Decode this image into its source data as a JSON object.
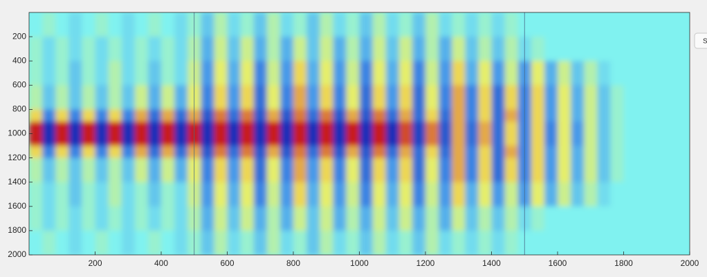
{
  "chart_data": {
    "type": "heatmap",
    "xlim": [
      0,
      2000
    ],
    "ylim": [
      0,
      2000
    ],
    "y_reversed": true,
    "xticks": [
      200,
      400,
      600,
      800,
      1000,
      1200,
      1400,
      1600,
      1800,
      2000
    ],
    "yticks": [
      200,
      400,
      600,
      800,
      1000,
      1200,
      1400,
      1600,
      1800,
      2000
    ],
    "clim": [
      -9,
      9
    ],
    "colormap": [
      "#1a2fb8",
      "#3f8fe8",
      "#80f2f0",
      "#f2ee5a",
      "#c81e1e"
    ],
    "vlines": [
      500,
      1500
    ],
    "vline_color": "#4a6a8a",
    "z": [
      [
        0,
        1,
        0,
        -1,
        0,
        1,
        0,
        -1,
        0,
        1,
        0,
        -1,
        1,
        -2,
        2,
        -1,
        1,
        -2,
        2,
        -1,
        1,
        -2,
        2,
        -1,
        1,
        -2,
        2,
        -1,
        1,
        -2,
        2,
        -1,
        1,
        -1,
        1,
        -1,
        1,
        0,
        0,
        0,
        0,
        0,
        0,
        0,
        0,
        0,
        0,
        0,
        0,
        0
      ],
      [
        0,
        1,
        0,
        -1,
        0,
        1,
        0,
        -1,
        0,
        1,
        0,
        -1,
        1,
        -2,
        2,
        -1,
        1,
        -2,
        2,
        -1,
        1,
        -2,
        2,
        -1,
        1,
        -2,
        2,
        -1,
        1,
        -2,
        2,
        -1,
        1,
        -1,
        1,
        -1,
        1,
        0,
        0,
        0,
        0,
        0,
        0,
        0,
        0,
        0,
        0,
        0,
        0,
        0
      ],
      [
        1,
        -1,
        1,
        -1,
        1,
        -1,
        1,
        -1,
        1,
        -1,
        1,
        -1,
        2,
        -3,
        3,
        -2,
        3,
        -3,
        2,
        -3,
        3,
        -2,
        3,
        -3,
        2,
        -3,
        3,
        -2,
        3,
        -3,
        2,
        -3,
        3,
        -2,
        2,
        -2,
        2,
        -1,
        1,
        0,
        0,
        0,
        0,
        0,
        0,
        0,
        0,
        0,
        0,
        0
      ],
      [
        1,
        -1,
        1,
        -1,
        1,
        -1,
        1,
        -1,
        1,
        -1,
        1,
        -1,
        2,
        -3,
        3,
        -2,
        3,
        -3,
        2,
        -3,
        3,
        -2,
        3,
        -3,
        2,
        -3,
        3,
        -2,
        3,
        -3,
        2,
        -3,
        3,
        -2,
        2,
        -2,
        2,
        -1,
        1,
        0,
        0,
        0,
        0,
        0,
        0,
        0,
        0,
        0,
        0,
        0
      ],
      [
        1,
        -1,
        1,
        -2,
        1,
        -1,
        2,
        -1,
        1,
        -2,
        1,
        -1,
        3,
        -4,
        4,
        -3,
        4,
        -5,
        3,
        -4,
        5,
        -3,
        4,
        -4,
        3,
        -5,
        4,
        -3,
        4,
        -5,
        3,
        -4,
        5,
        -3,
        4,
        -4,
        3,
        -4,
        4,
        -3,
        3,
        -2,
        2,
        -1,
        0,
        0,
        0,
        0,
        0,
        0
      ],
      [
        1,
        -1,
        1,
        -2,
        1,
        -1,
        2,
        -1,
        1,
        -2,
        1,
        -1,
        3,
        -4,
        4,
        -3,
        4,
        -5,
        3,
        -4,
        5,
        -3,
        4,
        -4,
        3,
        -5,
        4,
        -3,
        4,
        -5,
        3,
        -4,
        5,
        -3,
        4,
        -4,
        3,
        -4,
        4,
        -3,
        3,
        -2,
        2,
        -1,
        0,
        0,
        0,
        0,
        0,
        0
      ],
      [
        2,
        -2,
        2,
        -2,
        2,
        -2,
        2,
        -2,
        3,
        -3,
        3,
        -3,
        4,
        -5,
        5,
        -4,
        5,
        -6,
        4,
        -5,
        6,
        -4,
        5,
        -5,
        4,
        -6,
        5,
        -4,
        5,
        -6,
        4,
        -5,
        6,
        -5,
        5,
        -6,
        5,
        -5,
        5,
        -4,
        4,
        -3,
        3,
        -2,
        1,
        0,
        0,
        0,
        0,
        0
      ],
      [
        2,
        -2,
        2,
        -2,
        2,
        -2,
        2,
        -2,
        3,
        -3,
        3,
        -3,
        4,
        -5,
        5,
        -4,
        5,
        -6,
        4,
        -5,
        6,
        -4,
        5,
        -5,
        4,
        -6,
        5,
        -4,
        5,
        -6,
        4,
        -5,
        6,
        -5,
        5,
        -6,
        5,
        -5,
        5,
        -4,
        4,
        -3,
        3,
        -2,
        1,
        0,
        0,
        0,
        0,
        0
      ],
      [
        5,
        -5,
        5,
        -5,
        5,
        -5,
        5,
        -5,
        6,
        -6,
        6,
        -6,
        6,
        -7,
        7,
        -6,
        7,
        -7,
        6,
        -7,
        7,
        -6,
        7,
        -7,
        6,
        -7,
        7,
        -6,
        6,
        -6,
        5,
        -6,
        6,
        -5,
        5,
        -6,
        6,
        -5,
        5,
        -4,
        4,
        -3,
        3,
        -2,
        1,
        0,
        0,
        0,
        0,
        0
      ],
      [
        9,
        -9,
        9,
        -9,
        9,
        -9,
        9,
        -9,
        9,
        -9,
        9,
        -9,
        9,
        -9,
        9,
        -9,
        9,
        -9,
        9,
        -9,
        9,
        -9,
        9,
        -9,
        9,
        -9,
        9,
        -9,
        8,
        -8,
        7,
        -7,
        6,
        -6,
        6,
        -6,
        5,
        -5,
        5,
        -5,
        4,
        -4,
        3,
        -2,
        1,
        0,
        0,
        0,
        0,
        0
      ],
      [
        9,
        -9,
        9,
        -9,
        9,
        -9,
        9,
        -9,
        9,
        -9,
        9,
        -9,
        9,
        -9,
        9,
        -9,
        9,
        -9,
        9,
        -9,
        9,
        -9,
        9,
        -9,
        9,
        -9,
        9,
        -9,
        8,
        -8,
        7,
        -7,
        6,
        -6,
        6,
        -6,
        5,
        -5,
        5,
        -5,
        4,
        -4,
        3,
        -2,
        1,
        0,
        0,
        0,
        0,
        0
      ],
      [
        5,
        -5,
        5,
        -5,
        5,
        -5,
        5,
        -5,
        6,
        -6,
        6,
        -6,
        6,
        -7,
        7,
        -6,
        7,
        -7,
        6,
        -7,
        7,
        -6,
        7,
        -7,
        6,
        -7,
        7,
        -6,
        6,
        -6,
        5,
        -6,
        6,
        -5,
        5,
        -6,
        6,
        -5,
        5,
        -4,
        4,
        -3,
        3,
        -2,
        1,
        0,
        0,
        0,
        0,
        0
      ],
      [
        2,
        -2,
        2,
        -2,
        2,
        -2,
        2,
        -2,
        3,
        -3,
        3,
        -3,
        4,
        -5,
        5,
        -4,
        5,
        -6,
        4,
        -5,
        6,
        -4,
        5,
        -5,
        4,
        -6,
        5,
        -4,
        5,
        -6,
        4,
        -5,
        6,
        -5,
        5,
        -6,
        5,
        -5,
        5,
        -4,
        4,
        -3,
        3,
        -2,
        1,
        0,
        0,
        0,
        0,
        0
      ],
      [
        2,
        -2,
        2,
        -2,
        2,
        -2,
        2,
        -2,
        3,
        -3,
        3,
        -3,
        4,
        -5,
        5,
        -4,
        5,
        -6,
        4,
        -5,
        6,
        -4,
        5,
        -5,
        4,
        -6,
        5,
        -4,
        5,
        -6,
        4,
        -5,
        6,
        -5,
        5,
        -6,
        5,
        -5,
        5,
        -4,
        4,
        -3,
        3,
        -2,
        1,
        0,
        0,
        0,
        0,
        0
      ],
      [
        1,
        -1,
        1,
        -2,
        1,
        -1,
        2,
        -1,
        1,
        -2,
        1,
        -1,
        3,
        -4,
        4,
        -3,
        4,
        -5,
        3,
        -4,
        5,
        -3,
        4,
        -4,
        3,
        -5,
        4,
        -3,
        4,
        -5,
        3,
        -4,
        5,
        -3,
        4,
        -4,
        3,
        -4,
        4,
        -3,
        3,
        -2,
        2,
        -1,
        0,
        0,
        0,
        0,
        0,
        0
      ],
      [
        1,
        -1,
        1,
        -2,
        1,
        -1,
        2,
        -1,
        1,
        -2,
        1,
        -1,
        3,
        -4,
        4,
        -3,
        4,
        -5,
        3,
        -4,
        5,
        -3,
        4,
        -4,
        3,
        -5,
        4,
        -3,
        4,
        -5,
        3,
        -4,
        5,
        -3,
        4,
        -4,
        3,
        -4,
        4,
        -3,
        3,
        -2,
        2,
        -1,
        0,
        0,
        0,
        0,
        0,
        0
      ],
      [
        1,
        -1,
        1,
        -1,
        1,
        -1,
        1,
        -1,
        1,
        -1,
        1,
        -1,
        2,
        -3,
        3,
        -2,
        3,
        -3,
        2,
        -3,
        3,
        -2,
        3,
        -3,
        2,
        -3,
        3,
        -2,
        3,
        -3,
        2,
        -3,
        3,
        -2,
        2,
        -2,
        2,
        -1,
        1,
        0,
        0,
        0,
        0,
        0,
        0,
        0,
        0,
        0,
        0,
        0
      ],
      [
        1,
        -1,
        1,
        -1,
        1,
        -1,
        1,
        -1,
        1,
        -1,
        1,
        -1,
        2,
        -3,
        3,
        -2,
        3,
        -3,
        2,
        -3,
        3,
        -2,
        3,
        -3,
        2,
        -3,
        3,
        -2,
        3,
        -3,
        2,
        -3,
        3,
        -2,
        2,
        -2,
        2,
        -1,
        1,
        0,
        0,
        0,
        0,
        0,
        0,
        0,
        0,
        0,
        0,
        0
      ],
      [
        0,
        1,
        0,
        -1,
        0,
        1,
        0,
        -1,
        0,
        1,
        0,
        -1,
        1,
        -2,
        2,
        -1,
        1,
        -2,
        2,
        -1,
        1,
        -2,
        2,
        -1,
        1,
        -2,
        2,
        -1,
        1,
        -2,
        2,
        -1,
        1,
        -1,
        1,
        -1,
        1,
        0,
        0,
        0,
        0,
        0,
        0,
        0,
        0,
        0,
        0,
        0,
        0,
        0
      ],
      [
        0,
        1,
        0,
        -1,
        0,
        1,
        0,
        -1,
        0,
        1,
        0,
        -1,
        1,
        -2,
        2,
        -1,
        1,
        -2,
        2,
        -1,
        1,
        -2,
        2,
        -1,
        1,
        -2,
        2,
        -1,
        1,
        -2,
        2,
        -1,
        1,
        -1,
        1,
        -1,
        1,
        0,
        0,
        0,
        0,
        0,
        0,
        0,
        0,
        0,
        0,
        0,
        0,
        0
      ]
    ]
  },
  "ui": {
    "button": "S"
  }
}
